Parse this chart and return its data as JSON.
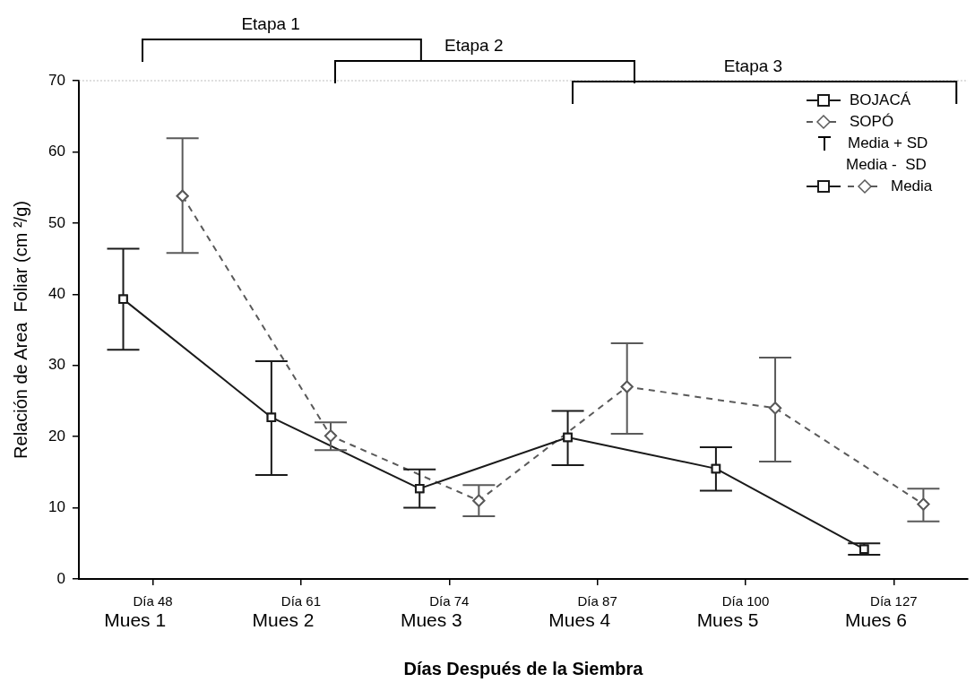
{
  "chart_data": {
    "type": "line",
    "xlabel": "Días Después de la Siembra",
    "ylabel": "Relación de Area  Foliar (cm ²/g)",
    "categories": [
      "Día 48",
      "Día 61",
      "Día 74",
      "Día 87",
      "Día 100",
      "Día 127"
    ],
    "series": [
      {
        "name": "BOJACÁ",
        "color": "#1a1a1a",
        "marker": "square",
        "line_style": "solid",
        "values": [
          39.3,
          22.7,
          12.7,
          19.9,
          15.5,
          4.2
        ],
        "errors": [
          [
            32.2,
            46.4
          ],
          [
            14.6,
            30.6
          ],
          [
            10.0,
            15.4
          ],
          [
            16.0,
            23.6
          ],
          [
            12.4,
            18.5
          ],
          [
            3.4,
            5.0
          ]
        ]
      },
      {
        "name": "SOPÓ",
        "color": "#5a5a5a",
        "marker": "diamond",
        "line_style": "dashed",
        "values": [
          53.8,
          20.1,
          11.0,
          27.0,
          24.0,
          10.5
        ],
        "errors": [
          [
            45.8,
            61.9
          ],
          [
            18.1,
            22.0
          ],
          [
            8.8,
            13.2
          ],
          [
            20.4,
            33.1
          ],
          [
            16.5,
            31.1
          ],
          [
            8.1,
            12.7
          ]
        ]
      }
    ],
    "annotations": [
      "Media + SD",
      "Media -  SD",
      "Media",
      "Etapa 1",
      "Etapa 2",
      "Etapa 3",
      "Mues 1",
      "Mues 2",
      "Mues 3",
      "Mues 4",
      "Mues 5",
      "Mues 6"
    ],
    "ylim": [
      0,
      70
    ],
    "yticks": [
      0,
      10,
      20,
      30,
      40,
      50,
      60,
      70
    ],
    "grid": false,
    "legend": "top right"
  }
}
